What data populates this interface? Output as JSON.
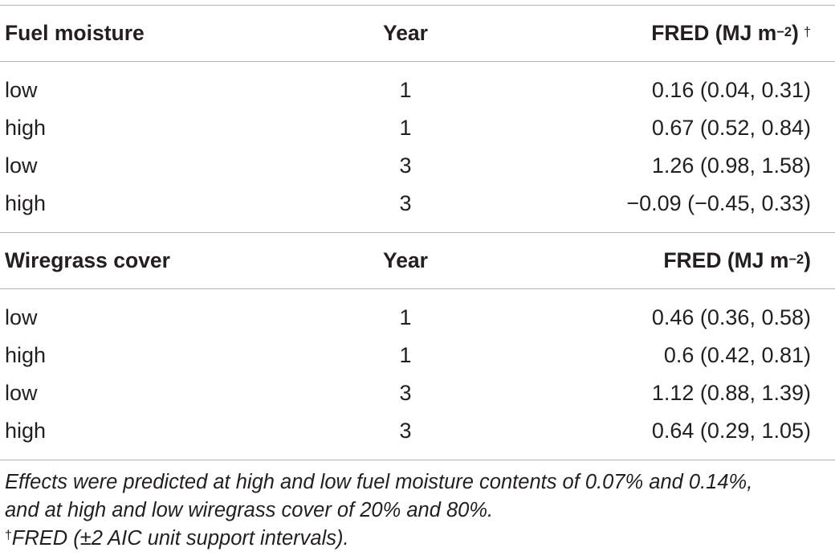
{
  "sections": [
    {
      "header": {
        "col1": "Fuel moisture",
        "col2": "Year",
        "col3_prefix": "FRED (MJ m",
        "col3_exp": "−2",
        "col3_suffix": ")",
        "col3_mark": "†"
      },
      "rows": [
        {
          "factor": "low",
          "year": "1",
          "fred": "0.16 (0.04, 0.31)"
        },
        {
          "factor": "high",
          "year": "1",
          "fred": "0.67 (0.52, 0.84)"
        },
        {
          "factor": "low",
          "year": "3",
          "fred": "1.26 (0.98, 1.58)"
        },
        {
          "factor": "high",
          "year": "3",
          "fred": "−0.09 (−0.45, 0.33)"
        }
      ]
    },
    {
      "header": {
        "col1": "Wiregrass cover",
        "col2": "Year",
        "col3_prefix": "FRED (MJ m",
        "col3_exp": "−2",
        "col3_suffix": ")",
        "col3_mark": ""
      },
      "rows": [
        {
          "factor": "low",
          "year": "1",
          "fred": "0.46 (0.36, 0.58)"
        },
        {
          "factor": "high",
          "year": "1",
          "fred": "0.6 (0.42, 0.81)"
        },
        {
          "factor": "low",
          "year": "3",
          "fred": "1.12 (0.88, 1.39)"
        },
        {
          "factor": "high",
          "year": "3",
          "fred": "0.64 (0.29, 1.05)"
        }
      ]
    }
  ],
  "footnotes": {
    "line1": "Effects were predicted at high and low fuel moisture contents of 0.07% and 0.14%,",
    "line2": "and at high and low wiregrass cover of 20% and 80%.",
    "dagger_mark": "†",
    "dagger_text": "FRED (±2 AIC unit support intervals)."
  }
}
